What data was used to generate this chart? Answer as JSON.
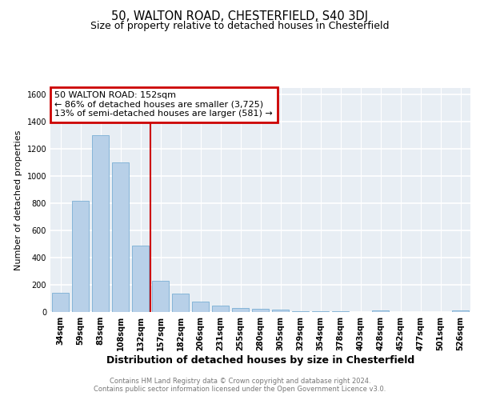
{
  "title": "50, WALTON ROAD, CHESTERFIELD, S40 3DJ",
  "subtitle": "Size of property relative to detached houses in Chesterfield",
  "xlabel": "Distribution of detached houses by size in Chesterfield",
  "ylabel": "Number of detached properties",
  "categories": [
    "34sqm",
    "59sqm",
    "83sqm",
    "108sqm",
    "132sqm",
    "157sqm",
    "182sqm",
    "206sqm",
    "231sqm",
    "255sqm",
    "280sqm",
    "305sqm",
    "329sqm",
    "354sqm",
    "378sqm",
    "403sqm",
    "428sqm",
    "452sqm",
    "477sqm",
    "501sqm",
    "526sqm"
  ],
  "values": [
    140,
    820,
    1300,
    1100,
    490,
    230,
    135,
    75,
    45,
    30,
    25,
    15,
    8,
    5,
    3,
    2,
    10,
    1,
    1,
    1,
    10
  ],
  "bar_color": "#b8d0e8",
  "bar_edgecolor": "#7aafd4",
  "bar_linewidth": 0.6,
  "vline_x_index": 4.5,
  "vline_color": "#cc0000",
  "annotation_line1": "50 WALTON ROAD: 152sqm",
  "annotation_line2": "← 86% of detached houses are smaller (3,725)",
  "annotation_line3": "13% of semi-detached houses are larger (581) →",
  "annotation_box_color": "#cc0000",
  "ylim": [
    0,
    1650
  ],
  "yticks": [
    0,
    200,
    400,
    600,
    800,
    1000,
    1200,
    1400,
    1600
  ],
  "plot_background": "#e8eef4",
  "grid_color": "#ffffff",
  "footer_text": "Contains HM Land Registry data © Crown copyright and database right 2024.\nContains public sector information licensed under the Open Government Licence v3.0.",
  "title_fontsize": 10.5,
  "subtitle_fontsize": 9,
  "xlabel_fontsize": 9,
  "ylabel_fontsize": 8,
  "tick_fontsize": 7,
  "annotation_fontsize": 8,
  "footer_fontsize": 6
}
